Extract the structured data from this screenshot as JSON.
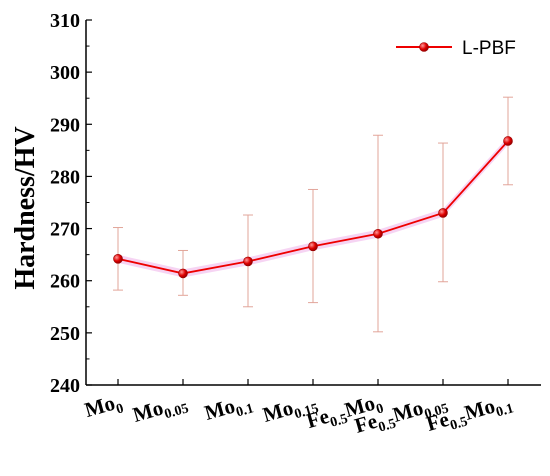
{
  "chart_data": {
    "type": "line",
    "title": "",
    "xlabel": "",
    "ylabel": "Hardness/HV",
    "ylim": [
      240,
      310
    ],
    "yticks": [
      240,
      250,
      260,
      270,
      280,
      290,
      300,
      310
    ],
    "grid": false,
    "legend_position": "top-right",
    "categories": [
      {
        "base": "Mo",
        "sub": "0",
        "base2": "",
        "sub2": ""
      },
      {
        "base": "Mo",
        "sub": "0.05",
        "base2": "",
        "sub2": ""
      },
      {
        "base": "Mo",
        "sub": "0.1",
        "base2": "",
        "sub2": ""
      },
      {
        "base": "Mo",
        "sub": "0.15",
        "base2": "",
        "sub2": ""
      },
      {
        "base": "Fe",
        "sub": "0.5",
        "base2": "Mo",
        "sub2": "0"
      },
      {
        "base": "Fe",
        "sub": "0.5",
        "base2": "Mo",
        "sub2": "0.05"
      },
      {
        "base": "Fe",
        "sub": "0.5",
        "base2": "Mo",
        "sub2": "0.1"
      }
    ],
    "series": [
      {
        "name": "L-PBF",
        "values": [
          264.2,
          261.4,
          263.7,
          266.6,
          269.0,
          273.0,
          286.8
        ],
        "error_low": [
          258.2,
          257.2,
          255.0,
          255.8,
          250.2,
          259.8,
          278.4
        ],
        "error_high": [
          270.2,
          265.8,
          272.6,
          277.5,
          287.9,
          286.4,
          295.2
        ]
      }
    ]
  },
  "colors": {
    "line": "#ee0000",
    "marker": "#dd0000",
    "error_bar": "#e2a59a",
    "band": "#f4c9f0",
    "axis": "#000000"
  }
}
